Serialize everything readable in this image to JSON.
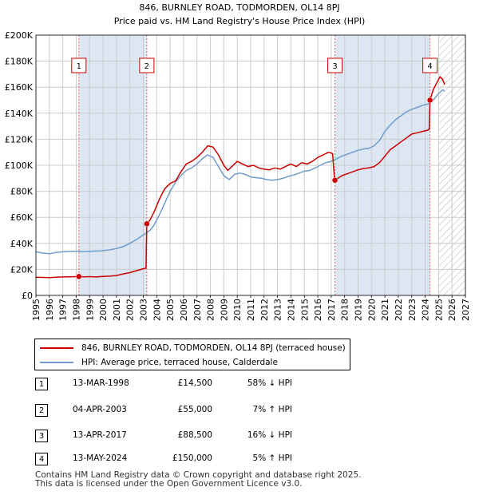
{
  "chart_data": {
    "type": "line",
    "title": "846, BURNLEY ROAD, TODMORDEN, OL14 8PJ",
    "subtitle": "Price paid vs. HM Land Registry's House Price Index (HPI)",
    "xlabel": "",
    "ylabel": "",
    "xlim": [
      1995,
      2027
    ],
    "ylim": [
      0,
      200000
    ],
    "x_ticks": [
      "1995",
      "1996",
      "1997",
      "1998",
      "1999",
      "2000",
      "2001",
      "2002",
      "2003",
      "2004",
      "2005",
      "2006",
      "2007",
      "2008",
      "2009",
      "2010",
      "2011",
      "2012",
      "2013",
      "2014",
      "2015",
      "2016",
      "2017",
      "2018",
      "2019",
      "2020",
      "2021",
      "2022",
      "2023",
      "2024",
      "2025",
      "2026",
      "2027"
    ],
    "y_ticks": [
      {
        "value": 0,
        "label": "£0"
      },
      {
        "value": 20000,
        "label": "£20K"
      },
      {
        "value": 40000,
        "label": "£40K"
      },
      {
        "value": 60000,
        "label": "£60K"
      },
      {
        "value": 80000,
        "label": "£80K"
      },
      {
        "value": 100000,
        "label": "£100K"
      },
      {
        "value": 120000,
        "label": "£120K"
      },
      {
        "value": 140000,
        "label": "£140K"
      },
      {
        "value": 160000,
        "label": "£160K"
      },
      {
        "value": 180000,
        "label": "£180K"
      },
      {
        "value": 200000,
        "label": "£200K"
      }
    ],
    "grid": true,
    "forecast_from": 2025.0,
    "series": [
      {
        "name": "846, BURNLEY ROAD, TODMORDEN, OL14 8PJ (terraced house)",
        "color": "#cc0000",
        "points": [
          [
            1995.0,
            14000
          ],
          [
            1995.5,
            13800
          ],
          [
            1996.0,
            13700
          ],
          [
            1996.5,
            13900
          ],
          [
            1997.0,
            14200
          ],
          [
            1997.5,
            14300
          ],
          [
            1998.0,
            14400
          ],
          [
            1998.2,
            14500
          ],
          [
            1998.6,
            14300
          ],
          [
            1999.0,
            14400
          ],
          [
            1999.5,
            14200
          ],
          [
            2000.0,
            14600
          ],
          [
            2000.5,
            14800
          ],
          [
            2001.0,
            15300
          ],
          [
            2001.5,
            16500
          ],
          [
            2002.0,
            17500
          ],
          [
            2002.5,
            19000
          ],
          [
            2003.0,
            20500
          ],
          [
            2003.2,
            21000
          ],
          [
            2003.26,
            55000
          ],
          [
            2003.5,
            58000
          ],
          [
            2003.8,
            64000
          ],
          [
            2004.2,
            74000
          ],
          [
            2004.6,
            82000
          ],
          [
            2005.0,
            86000
          ],
          [
            2005.4,
            88000
          ],
          [
            2005.8,
            95000
          ],
          [
            2006.2,
            101000
          ],
          [
            2006.6,
            103000
          ],
          [
            2007.0,
            106000
          ],
          [
            2007.4,
            110000
          ],
          [
            2007.8,
            115000
          ],
          [
            2008.2,
            114000
          ],
          [
            2008.6,
            108000
          ],
          [
            2009.0,
            100000
          ],
          [
            2009.3,
            96000
          ],
          [
            2009.6,
            99000
          ],
          [
            2010.0,
            103000
          ],
          [
            2010.4,
            101000
          ],
          [
            2010.8,
            99000
          ],
          [
            2011.2,
            100000
          ],
          [
            2011.6,
            98000
          ],
          [
            2012.0,
            97000
          ],
          [
            2012.4,
            96500
          ],
          [
            2012.8,
            98000
          ],
          [
            2013.2,
            97000
          ],
          [
            2013.6,
            99000
          ],
          [
            2014.0,
            101000
          ],
          [
            2014.4,
            99000
          ],
          [
            2014.8,
            102000
          ],
          [
            2015.2,
            101000
          ],
          [
            2015.6,
            103000
          ],
          [
            2016.0,
            106000
          ],
          [
            2016.4,
            108000
          ],
          [
            2016.8,
            110000
          ],
          [
            2017.1,
            109000
          ],
          [
            2017.25,
            88500
          ],
          [
            2017.5,
            90000
          ],
          [
            2017.8,
            92000
          ],
          [
            2018.2,
            93500
          ],
          [
            2018.6,
            95000
          ],
          [
            2019.0,
            96500
          ],
          [
            2019.4,
            97500
          ],
          [
            2019.8,
            98000
          ],
          [
            2020.2,
            99000
          ],
          [
            2020.6,
            102000
          ],
          [
            2021.0,
            107000
          ],
          [
            2021.4,
            112000
          ],
          [
            2021.8,
            115000
          ],
          [
            2022.2,
            118000
          ],
          [
            2022.6,
            121000
          ],
          [
            2023.0,
            124000
          ],
          [
            2023.4,
            125000
          ],
          [
            2023.8,
            126000
          ],
          [
            2024.2,
            127000
          ],
          [
            2024.3,
            127500
          ],
          [
            2024.36,
            150000
          ],
          [
            2024.6,
            158000
          ],
          [
            2024.9,
            164000
          ],
          [
            2025.1,
            168000
          ],
          [
            2025.3,
            166000
          ],
          [
            2025.45,
            162000
          ]
        ]
      },
      {
        "name": "HPI: Average price, terraced house, Calderdale",
        "color": "#6f9ccc",
        "points": [
          [
            1995.0,
            33500
          ],
          [
            1995.5,
            32500
          ],
          [
            1996.0,
            32000
          ],
          [
            1996.5,
            33000
          ],
          [
            1997.0,
            33500
          ],
          [
            1997.5,
            33800
          ],
          [
            1998.0,
            34000
          ],
          [
            1998.5,
            33700
          ],
          [
            1999.0,
            33900
          ],
          [
            1999.5,
            34100
          ],
          [
            2000.0,
            34400
          ],
          [
            2000.5,
            35000
          ],
          [
            2001.0,
            36000
          ],
          [
            2001.5,
            37500
          ],
          [
            2002.0,
            40000
          ],
          [
            2002.5,
            43000
          ],
          [
            2003.0,
            46500
          ],
          [
            2003.5,
            50000
          ],
          [
            2003.8,
            54000
          ],
          [
            2004.2,
            62000
          ],
          [
            2004.6,
            71000
          ],
          [
            2005.0,
            80000
          ],
          [
            2005.4,
            87000
          ],
          [
            2005.8,
            92000
          ],
          [
            2006.2,
            96000
          ],
          [
            2006.6,
            98000
          ],
          [
            2007.0,
            101000
          ],
          [
            2007.4,
            105000
          ],
          [
            2007.8,
            108000
          ],
          [
            2008.2,
            106000
          ],
          [
            2008.6,
            99000
          ],
          [
            2009.0,
            92000
          ],
          [
            2009.4,
            89000
          ],
          [
            2009.8,
            93000
          ],
          [
            2010.2,
            94000
          ],
          [
            2010.6,
            93000
          ],
          [
            2011.0,
            91000
          ],
          [
            2011.4,
            90500
          ],
          [
            2011.8,
            90000
          ],
          [
            2012.2,
            89000
          ],
          [
            2012.6,
            88500
          ],
          [
            2013.0,
            89000
          ],
          [
            2013.4,
            90000
          ],
          [
            2013.8,
            91500
          ],
          [
            2014.2,
            92500
          ],
          [
            2014.6,
            94000
          ],
          [
            2015.0,
            95500
          ],
          [
            2015.4,
            96000
          ],
          [
            2015.8,
            98000
          ],
          [
            2016.2,
            100000
          ],
          [
            2016.6,
            102000
          ],
          [
            2017.0,
            103000
          ],
          [
            2017.4,
            105000
          ],
          [
            2017.8,
            107000
          ],
          [
            2018.2,
            108500
          ],
          [
            2018.6,
            110000
          ],
          [
            2019.0,
            111500
          ],
          [
            2019.4,
            112500
          ],
          [
            2019.8,
            113000
          ],
          [
            2020.2,
            115000
          ],
          [
            2020.6,
            119000
          ],
          [
            2021.0,
            126000
          ],
          [
            2021.4,
            131000
          ],
          [
            2021.8,
            135000
          ],
          [
            2022.2,
            138000
          ],
          [
            2022.6,
            141000
          ],
          [
            2023.0,
            143000
          ],
          [
            2023.4,
            144500
          ],
          [
            2023.8,
            146000
          ],
          [
            2024.2,
            147000
          ],
          [
            2024.6,
            150000
          ],
          [
            2025.0,
            155000
          ],
          [
            2025.3,
            158000
          ],
          [
            2025.45,
            157000
          ]
        ]
      }
    ],
    "sales": [
      {
        "label": "1",
        "x": 1998.2,
        "price": 14500
      },
      {
        "label": "2",
        "x": 2003.26,
        "price": 55000
      },
      {
        "label": "3",
        "x": 2017.28,
        "price": 88500
      },
      {
        "label": "4",
        "x": 2024.36,
        "price": 150000
      }
    ]
  },
  "table": {
    "rows": [
      {
        "num": "1",
        "date": "13-MAR-1998",
        "price": "£14,500",
        "hpi": "58% ↓ HPI"
      },
      {
        "num": "2",
        "date": "04-APR-2003",
        "price": "£55,000",
        "hpi": "7% ↑ HPI"
      },
      {
        "num": "3",
        "date": "13-APR-2017",
        "price": "£88,500",
        "hpi": "16% ↓ HPI"
      },
      {
        "num": "4",
        "date": "13-MAY-2024",
        "price": "£150,000",
        "hpi": "5% ↑ HPI"
      }
    ]
  },
  "footer": {
    "line1": "Contains HM Land Registry data © Crown copyright and database right 2025.",
    "line2": "This data is licensed under the Open Government Licence v3.0."
  },
  "colors": {
    "property": "#cc0000",
    "hpi": "#6f9ccc",
    "shade": "#dde6f3",
    "grid": "#cccccc"
  }
}
